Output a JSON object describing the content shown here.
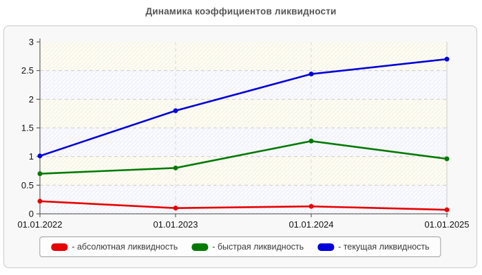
{
  "title": "Динамика коэффициентов ликвидности",
  "chart_data": {
    "type": "line",
    "title": "Динамика коэффициентов ликвидности",
    "x_categories": [
      "01.01.2022",
      "01.01.2023",
      "01.01.2024",
      "01.01.2025"
    ],
    "series": [
      {
        "key": "absolute-liquidity",
        "name": "абсолютная ликвидность",
        "color": "#e60000",
        "values": [
          0.22,
          0.1,
          0.13,
          0.07
        ]
      },
      {
        "key": "quick-liquidity",
        "name": "быстрая ликвидность",
        "color": "#007a00",
        "values": [
          0.7,
          0.8,
          1.27,
          0.96
        ]
      },
      {
        "key": "current-liquidity",
        "name": "текущая ликвидность",
        "color": "#0000d9",
        "values": [
          1.01,
          1.8,
          2.44,
          2.7
        ]
      }
    ],
    "ylim": [
      0,
      3
    ],
    "y_ticks": [
      0,
      0.5,
      1,
      1.5,
      2,
      2.5,
      3
    ],
    "y_tick_labels": [
      "0",
      "0.5",
      "1",
      "1.5",
      "2",
      "2.5",
      "3"
    ],
    "grid": "dashed",
    "band_colors": [
      "#f8f6e6",
      "#f2f2fb"
    ],
    "legend_position": "bottom"
  },
  "legend": {
    "items": [
      {
        "label": "- абсолютная ликвидность",
        "color": "#e60000"
      },
      {
        "label": "- быстрая ликвидность",
        "color": "#007a00"
      },
      {
        "label": "- текущая ликвидность",
        "color": "#0000d9"
      }
    ]
  }
}
